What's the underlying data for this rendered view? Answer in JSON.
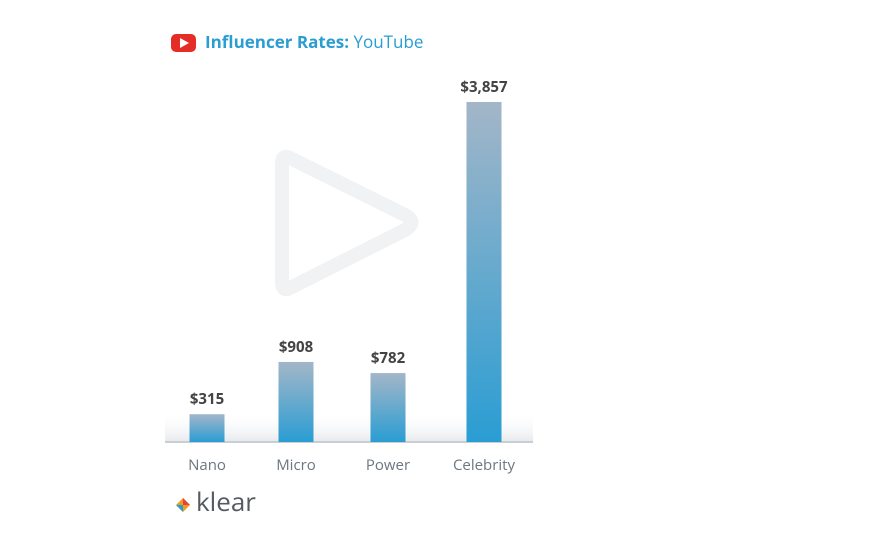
{
  "chart_data": {
    "type": "bar",
    "title": "Influencer Rates:",
    "subtitle": "YouTube",
    "categories": [
      "Nano",
      "Micro",
      "Power",
      "Celebrity"
    ],
    "values": [
      315,
      908,
      782,
      3857
    ],
    "value_labels": [
      "$315",
      "$908",
      "$782",
      "$3,857"
    ],
    "color": "#2a9dd3",
    "brand": "klear"
  }
}
